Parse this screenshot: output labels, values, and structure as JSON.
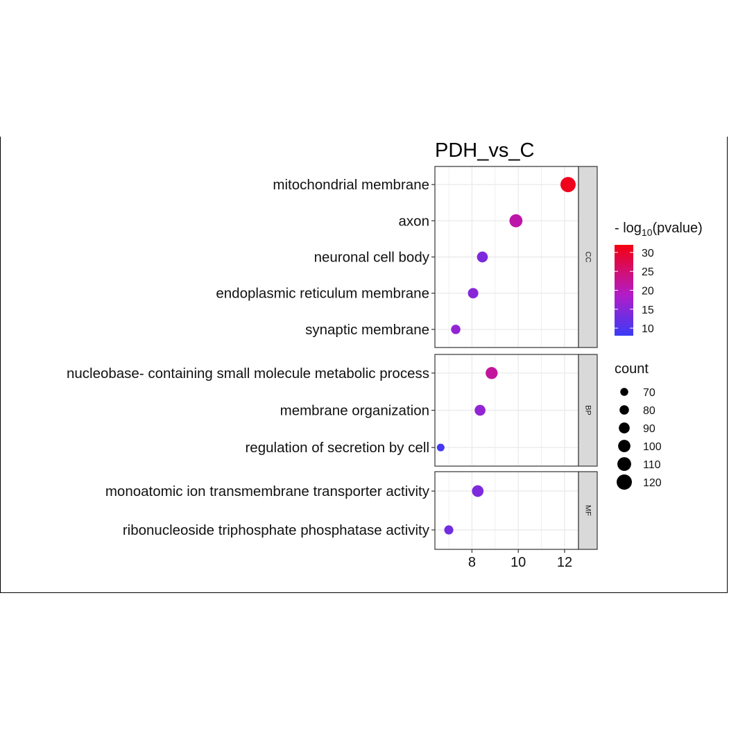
{
  "chart_data": {
    "type": "scatter",
    "title": "PDH_vs_C",
    "xlabel": "",
    "ylabel": "",
    "xlim": [
      6.4,
      12.6
    ],
    "x_ticks": [
      8,
      10,
      12
    ],
    "grid": true,
    "facets": [
      {
        "name": "CC",
        "terms": [
          {
            "term": "mitochondrial membrane",
            "x": 12.15,
            "count": 120,
            "neglog10p": 31
          },
          {
            "term": "axon",
            "x": 9.9,
            "count": 105,
            "neglog10p": 21
          },
          {
            "term": "neuronal cell body",
            "x": 8.45,
            "count": 90,
            "neglog10p": 14
          },
          {
            "term": "endoplasmic reticulum membrane",
            "x": 8.05,
            "count": 87,
            "neglog10p": 15
          },
          {
            "term": "synaptic membrane",
            "x": 7.3,
            "count": 80,
            "neglog10p": 16
          }
        ]
      },
      {
        "name": "BP",
        "terms": [
          {
            "term": "nucleobase- containing small molecule metabolic process",
            "x": 8.85,
            "count": 98,
            "neglog10p": 22
          },
          {
            "term": "membrane organization",
            "x": 8.35,
            "count": 90,
            "neglog10p": 16
          },
          {
            "term": "regulation of secretion by cell",
            "x": 6.65,
            "count": 68,
            "neglog10p": 9
          }
        ]
      },
      {
        "name": "MF",
        "terms": [
          {
            "term": "monoatomic ion transmembrane transporter activity",
            "x": 8.25,
            "count": 95,
            "neglog10p": 14
          },
          {
            "term": "ribonucleoside triphosphate phosphatase activity",
            "x": 7.0,
            "count": 78,
            "neglog10p": 13
          }
        ]
      }
    ],
    "color_legend": {
      "title_prefix": "- log",
      "title_sub": "10",
      "title_suffix": "(pvalue)",
      "ticks": [
        30,
        25,
        20,
        15,
        10
      ],
      "range": [
        8,
        32
      ],
      "low_color": "#3B3BF5",
      "mid_color": "#B21CC9",
      "high_color": "#F5000E"
    },
    "size_legend": {
      "title": "count",
      "values": [
        70,
        80,
        90,
        100,
        110,
        120
      ],
      "range": [
        65,
        125
      ]
    },
    "strip_color": "#d9d9d9",
    "grid_color": "#ebebeb"
  }
}
